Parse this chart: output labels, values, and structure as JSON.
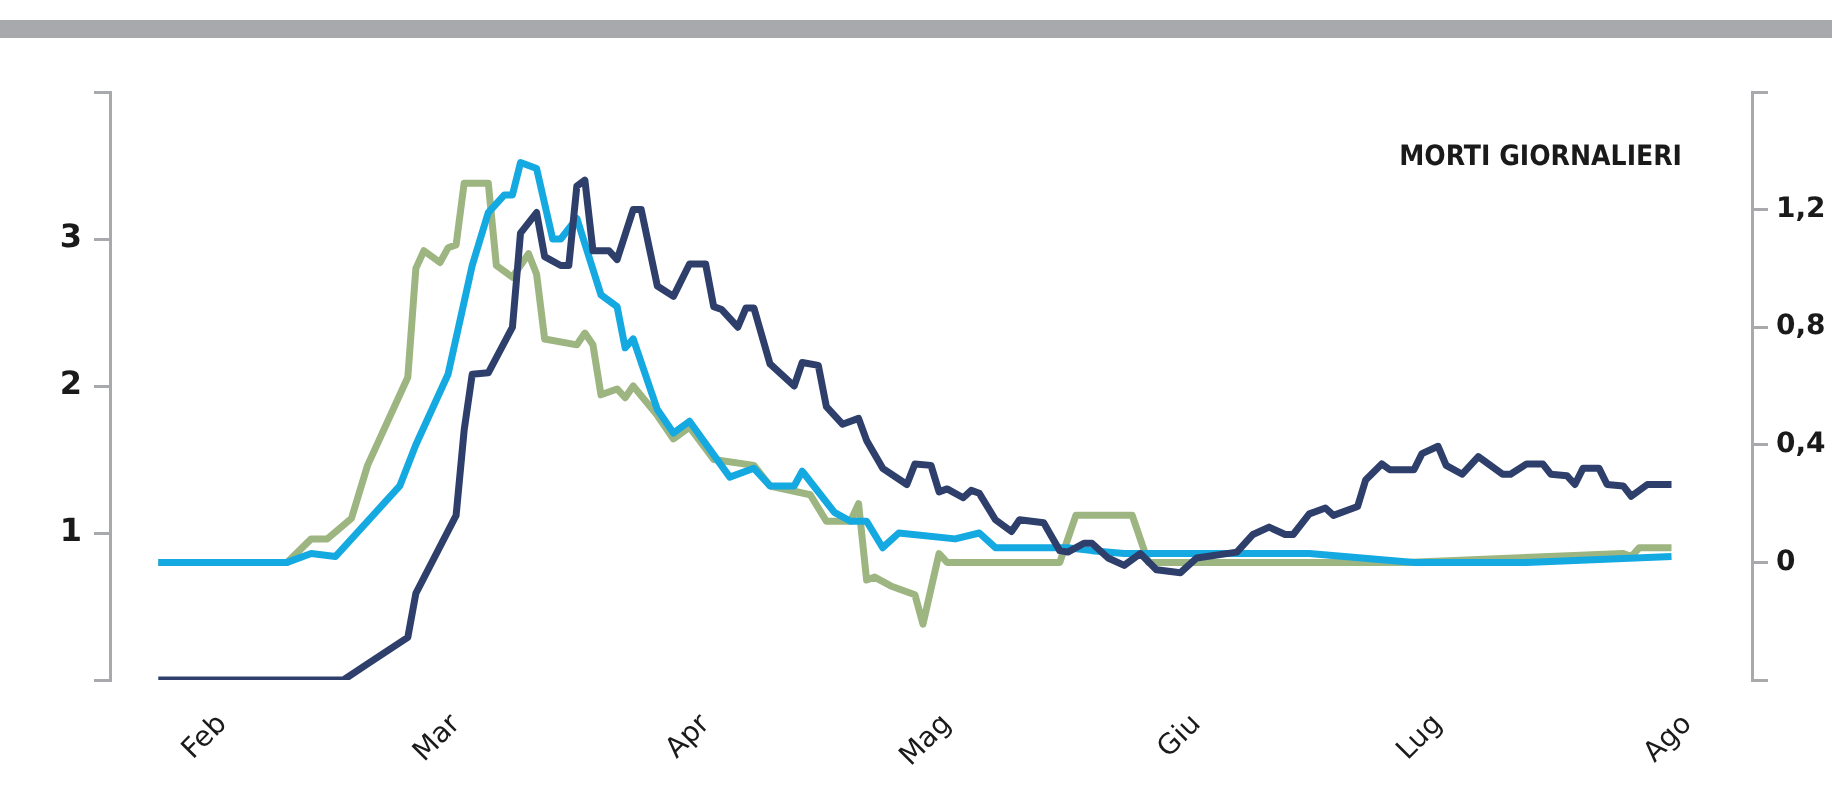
{
  "chart_data": {
    "type": "line",
    "title": "MORTI GIORNALIERI",
    "xlim": [
      "--01-18",
      "--08-09"
    ],
    "xticks": [
      {
        "value": "--02-01",
        "label": "Feb"
      },
      {
        "value": "--03-01",
        "label": "Mar"
      },
      {
        "value": "--04-01",
        "label": "Apr"
      },
      {
        "value": "--05-01",
        "label": "Mag"
      },
      {
        "value": "--06-01",
        "label": "Giu"
      },
      {
        "value": "--07-01",
        "label": "Lug"
      },
      {
        "value": "--08-01",
        "label": "Ago"
      }
    ],
    "ylim": [
      0,
      4
    ],
    "yticks": [
      {
        "value": 0,
        "label": null
      },
      1,
      2,
      3,
      {
        "value": 4,
        "label": null
      }
    ],
    "y2lim": [
      -0.4,
      1.6
    ],
    "y2ticks": [
      {
        "value": -0.4,
        "label": null
      },
      0,
      {
        "value": 0.4,
        "label": "0,4"
      },
      {
        "value": 0.8,
        "label": "0,8"
      },
      {
        "value": 1.2,
        "label": "1,2"
      },
      {
        "value": 1.6,
        "label": null
      }
    ],
    "grid": false,
    "series": [
      {
        "color": "#2e3f6b",
        "axis": "y",
        "x": [
          "--01-24",
          "--02-16",
          "--02-19",
          "--02-24",
          "--02-25",
          "--03-01",
          "--03-02",
          "--03-03",
          "--03-05",
          "--03-08",
          "--03-09",
          "--03-11",
          "--03-12",
          "--03-14",
          "--03-15",
          "--03-16",
          "--03-17",
          "--03-18",
          "--03-20",
          "--03-21",
          "--03-23",
          "--03-24",
          "--03-26",
          "--03-28",
          "--03-30",
          "--04-01",
          "--04-02",
          "--04-03",
          "--04-05",
          "--04-06",
          "--04-07",
          "--04-09",
          "--04-12",
          "--04-13",
          "--04-15",
          "--04-16",
          "--04-18",
          "--04-20",
          "--04-21",
          "--04-23",
          "--04-26",
          "--04-27",
          "--04-29",
          "--04-30",
          "--05-01",
          "--05-03",
          "--05-04",
          "--05-05",
          "--05-07",
          "--05-09",
          "--05-10",
          "--05-13",
          "--05-15",
          "--05-16",
          "--05-18",
          "--05-19",
          "--05-21",
          "--05-23",
          "--05-25",
          "--05-27",
          "--05-30",
          "--06-01",
          "--06-06",
          "--06-08",
          "--06-10",
          "--06-12",
          "--06-13",
          "--06-15",
          "--06-17",
          "--06-18",
          "--06-21",
          "--06-22",
          "--06-24",
          "--06-25",
          "--06-28",
          "--06-29",
          "--07-01",
          "--07-02",
          "--07-04",
          "--07-06",
          "--07-09",
          "--07-10",
          "--07-12",
          "--07-14",
          "--07-15",
          "--07-17",
          "--07-18",
          "--07-19",
          "--07-21",
          "--07-22",
          "--07-24",
          "--07-25",
          "--07-27",
          "--07-30"
        ],
        "values": [
          0,
          0,
          0.11,
          0.29,
          0.59,
          1.12,
          1.7,
          2.08,
          2.09,
          2.4,
          3.04,
          3.18,
          2.88,
          2.82,
          2.82,
          3.36,
          3.4,
          2.92,
          2.92,
          2.86,
          3.2,
          3.2,
          2.68,
          2.61,
          2.83,
          2.83,
          2.54,
          2.52,
          2.4,
          2.53,
          2.53,
          2.15,
          2.0,
          2.16,
          2.14,
          1.86,
          1.74,
          1.78,
          1.63,
          1.44,
          1.33,
          1.47,
          1.46,
          1.28,
          1.3,
          1.24,
          1.29,
          1.27,
          1.09,
          1.01,
          1.09,
          1.07,
          0.88,
          0.87,
          0.93,
          0.93,
          0.83,
          0.78,
          0.86,
          0.75,
          0.73,
          0.83,
          0.87,
          0.99,
          1.04,
          0.99,
          0.99,
          1.13,
          1.17,
          1.12,
          1.18,
          1.36,
          1.47,
          1.43,
          1.43,
          1.54,
          1.59,
          1.46,
          1.4,
          1.52,
          1.4,
          1.4,
          1.47,
          1.47,
          1.4,
          1.39,
          1.33,
          1.44,
          1.44,
          1.33,
          1.32,
          1.25,
          1.33,
          1.33
        ]
      },
      {
        "color": "#14a9e1",
        "axis": "y2",
        "x": [
          "--01-24",
          "--02-09",
          "--02-12",
          "--02-15",
          "--02-23",
          "--02-25",
          "--02-29",
          "--03-03",
          "--03-05",
          "--03-07",
          "--03-08",
          "--03-09",
          "--03-11",
          "--03-13",
          "--03-14",
          "--03-16",
          "--03-19",
          "--03-21",
          "--03-22",
          "--03-23",
          "--03-26",
          "--03-28",
          "--03-30",
          "--04-04",
          "--04-07",
          "--04-09",
          "--04-12",
          "--04-13",
          "--04-17",
          "--04-19",
          "--04-21",
          "--04-23",
          "--04-25",
          "--05-02",
          "--05-05",
          "--05-07",
          "--05-16",
          "--05-19",
          "--05-23",
          "--06-15",
          "--06-28",
          "--07-12",
          "--07-30"
        ],
        "values": [
          0,
          0,
          0.03,
          0.02,
          0.26,
          0.4,
          0.64,
          1.01,
          1.19,
          1.25,
          1.25,
          1.36,
          1.34,
          1.1,
          1.1,
          1.17,
          0.91,
          0.87,
          0.73,
          0.76,
          0.52,
          0.44,
          0.48,
          0.29,
          0.32,
          0.26,
          0.26,
          0.31,
          0.17,
          0.14,
          0.14,
          0.05,
          0.1,
          0.08,
          0.1,
          0.05,
          0.05,
          0.04,
          0.03,
          0.03,
          0,
          0,
          0.02
        ]
      },
      {
        "color": "#9db580",
        "axis": "y2",
        "x": [
          "--01-24",
          "--02-09",
          "--02-12",
          "--02-14",
          "--02-17",
          "--02-19",
          "--02-24",
          "--02-25",
          "--02-26",
          "--02-28",
          "--02-29",
          "--03-01",
          "--03-02",
          "--03-05",
          "--03-06",
          "--03-08",
          "--03-10",
          "--03-11",
          "--03-12",
          "--03-16",
          "--03-17",
          "--03-18",
          "--03-19",
          "--03-21",
          "--03-22",
          "--03-23",
          "--03-26",
          "--03-28",
          "--03-30",
          "--04-02",
          "--04-07",
          "--04-09",
          "--04-14",
          "--04-16",
          "--04-19",
          "--04-20",
          "--04-21",
          "--04-22",
          "--04-24",
          "--04-27",
          "--04-28",
          "--04-30",
          "--05-01",
          "--05-15",
          "--05-17",
          "--05-24",
          "--05-26",
          "--06-27",
          "--07-24",
          "--07-25",
          "--07-26",
          "--07-30"
        ],
        "values": [
          0,
          0,
          0.08,
          0.08,
          0.15,
          0.33,
          0.63,
          1.0,
          1.06,
          1.02,
          1.07,
          1.08,
          1.29,
          1.29,
          1.01,
          0.97,
          1.05,
          0.98,
          0.76,
          0.74,
          0.78,
          0.74,
          0.57,
          0.59,
          0.56,
          0.6,
          0.5,
          0.42,
          0.46,
          0.35,
          0.33,
          0.26,
          0.23,
          0.14,
          0.14,
          0.2,
          -0.06,
          -0.05,
          -0.08,
          -0.11,
          -0.21,
          0.03,
          0,
          0,
          0.16,
          0.16,
          0,
          0,
          0.03,
          0.02,
          0.05,
          0.05
        ]
      }
    ]
  }
}
